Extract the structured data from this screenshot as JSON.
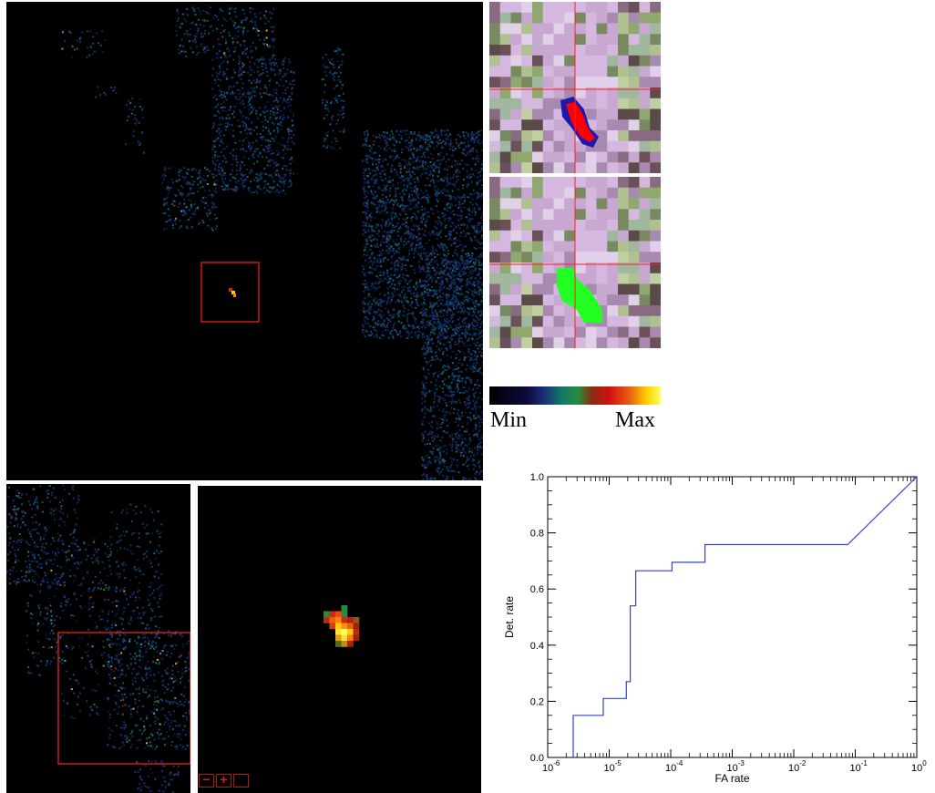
{
  "colorbar": {
    "min_label": "Min",
    "max_label": "Max"
  },
  "zoom_controls": {
    "minus": "−",
    "plus": "+",
    "reset": ""
  },
  "colors": {
    "selection_box": "#d01818",
    "crosshair": "#ff2020",
    "detection_mask": "#22ff22",
    "roc_line": "#3344cc"
  },
  "chart_data": {
    "type": "line",
    "title": "",
    "xlabel": "FA rate",
    "ylabel": "Det. rate",
    "xscale": "log",
    "xlim": [
      1e-06,
      1
    ],
    "ylim": [
      0,
      1
    ],
    "x_ticks": [
      {
        "base": "10",
        "exp": "-6"
      },
      {
        "base": "10",
        "exp": "-5"
      },
      {
        "base": "10",
        "exp": "-4"
      },
      {
        "base": "10",
        "exp": "-3"
      },
      {
        "base": "10",
        "exp": "-2"
      },
      {
        "base": "10",
        "exp": "-1"
      },
      {
        "base": "10",
        "exp": "0"
      }
    ],
    "y_ticks": [
      "0.0",
      "0.2",
      "0.4",
      "0.6",
      "0.8",
      "1.0"
    ],
    "grid": false,
    "series": [
      {
        "x": [
          2.6e-06,
          2.6e-06,
          8e-06,
          8e-06,
          1.9e-05,
          1.9e-05,
          2.2e-05,
          2.2e-05,
          2.7e-05,
          2.7e-05,
          0.000105,
          0.000105,
          0.00036,
          0.00036,
          0.075,
          1
        ],
        "y": [
          0.0,
          0.15,
          0.15,
          0.21,
          0.21,
          0.27,
          0.27,
          0.54,
          0.54,
          0.665,
          0.665,
          0.695,
          0.695,
          0.758,
          0.758,
          1.0
        ]
      }
    ]
  }
}
